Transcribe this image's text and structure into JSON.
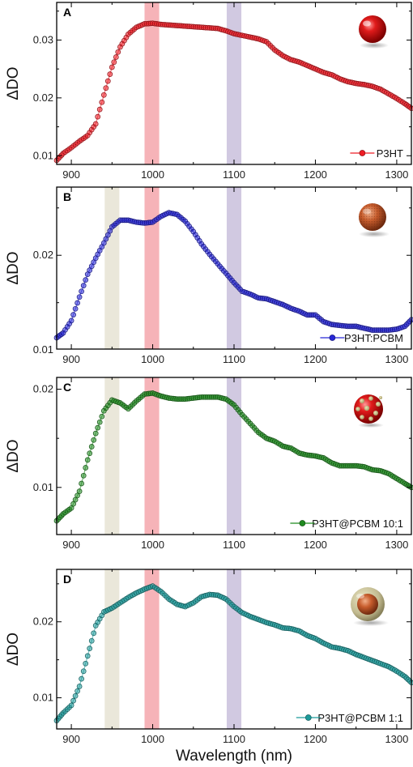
{
  "figure": {
    "xlabel": "Wavelength (nm)",
    "ylabel": "ΔDO"
  },
  "chart_data": [
    {
      "type": "scatter",
      "panel": "A",
      "xlim": [
        882,
        1318
      ],
      "ylim": [
        0.0085,
        0.0365
      ],
      "xticks": [
        900,
        1000,
        1100,
        1200,
        1300
      ],
      "yticks": [
        0.01,
        0.02,
        0.03
      ],
      "ytick_labels": [
        "0.01",
        "0.02",
        "0.03"
      ],
      "bands": [
        {
          "x0": 990,
          "x1": 1008,
          "color": "#f4a6ab"
        },
        {
          "x0": 1091,
          "x1": 1109,
          "color": "#c9bfdc"
        }
      ],
      "legend_position": "bottom-right",
      "series": [
        {
          "name": "P3HT",
          "color": "#ee1c24",
          "x": [
            882,
            890,
            900,
            910,
            920,
            930,
            940,
            950,
            960,
            970,
            980,
            990,
            1000,
            1010,
            1020,
            1030,
            1040,
            1050,
            1060,
            1070,
            1080,
            1090,
            1100,
            1110,
            1120,
            1130,
            1140,
            1150,
            1160,
            1170,
            1180,
            1190,
            1200,
            1210,
            1220,
            1230,
            1240,
            1250,
            1260,
            1270,
            1280,
            1290,
            1300,
            1310,
            1318
          ],
          "y": [
            0.0092,
            0.0104,
            0.0114,
            0.0125,
            0.0135,
            0.0155,
            0.0205,
            0.0253,
            0.0288,
            0.031,
            0.0322,
            0.0328,
            0.0329,
            0.0327,
            0.0326,
            0.0325,
            0.0324,
            0.0323,
            0.0322,
            0.0321,
            0.032,
            0.0316,
            0.0311,
            0.0308,
            0.0305,
            0.0302,
            0.0297,
            0.0283,
            0.0273,
            0.0266,
            0.0262,
            0.0256,
            0.025,
            0.0244,
            0.024,
            0.0233,
            0.0228,
            0.0225,
            0.0223,
            0.022,
            0.0215,
            0.0207,
            0.0199,
            0.019,
            0.0182
          ]
        }
      ]
    },
    {
      "type": "scatter",
      "panel": "B",
      "xlim": [
        882,
        1318
      ],
      "ylim": [
        0.0101,
        0.0272
      ],
      "xticks": [
        900,
        1000,
        1100,
        1200,
        1300
      ],
      "yticks": [
        0.01,
        0.02
      ],
      "ytick_labels": [
        "0.01",
        "0.02"
      ],
      "bands": [
        {
          "x0": 941,
          "x1": 959,
          "color": "#e6e3d4"
        },
        {
          "x0": 990,
          "x1": 1008,
          "color": "#f4a6ab"
        },
        {
          "x0": 1091,
          "x1": 1109,
          "color": "#c9bfdc"
        }
      ],
      "legend_position": "bottom-right",
      "series": [
        {
          "name": "P3HT:PCBM",
          "color": "#2727d6",
          "x": [
            882,
            890,
            900,
            910,
            920,
            930,
            940,
            950,
            960,
            970,
            980,
            990,
            1000,
            1010,
            1020,
            1030,
            1040,
            1050,
            1060,
            1070,
            1080,
            1090,
            1100,
            1110,
            1120,
            1130,
            1140,
            1150,
            1160,
            1170,
            1180,
            1190,
            1200,
            1210,
            1220,
            1230,
            1240,
            1250,
            1260,
            1270,
            1280,
            1290,
            1300,
            1310,
            1318
          ],
          "y": [
            0.0113,
            0.0118,
            0.0131,
            0.0156,
            0.018,
            0.0197,
            0.0213,
            0.023,
            0.0237,
            0.0237,
            0.0235,
            0.0234,
            0.0235,
            0.0241,
            0.0245,
            0.0243,
            0.0236,
            0.0225,
            0.0212,
            0.0201,
            0.0191,
            0.0181,
            0.0171,
            0.0162,
            0.0159,
            0.0155,
            0.0154,
            0.0151,
            0.0148,
            0.0144,
            0.0141,
            0.0137,
            0.0137,
            0.013,
            0.0127,
            0.0126,
            0.0125,
            0.0125,
            0.0123,
            0.0121,
            0.0121,
            0.0121,
            0.0122,
            0.0125,
            0.0132
          ]
        }
      ]
    },
    {
      "type": "scatter",
      "panel": "C",
      "xlim": [
        882,
        1318
      ],
      "ylim": [
        0.0052,
        0.0212
      ],
      "xticks": [
        900,
        1000,
        1100,
        1200,
        1300
      ],
      "yticks": [
        0.01,
        0.02
      ],
      "ytick_labels": [
        "0.01",
        "0.02"
      ],
      "bands": [
        {
          "x0": 941,
          "x1": 959,
          "color": "#e6e3d4"
        },
        {
          "x0": 990,
          "x1": 1008,
          "color": "#f4a6ab"
        },
        {
          "x0": 1091,
          "x1": 1109,
          "color": "#c9bfdc"
        }
      ],
      "legend_position": "bottom-right",
      "series": [
        {
          "name": "P3HT@PCBM 10:1",
          "color": "#1f8a1f",
          "x": [
            882,
            890,
            900,
            910,
            920,
            930,
            940,
            950,
            960,
            970,
            980,
            990,
            1000,
            1010,
            1020,
            1030,
            1040,
            1050,
            1060,
            1070,
            1080,
            1090,
            1100,
            1110,
            1120,
            1130,
            1140,
            1150,
            1160,
            1170,
            1180,
            1190,
            1200,
            1210,
            1220,
            1230,
            1240,
            1250,
            1260,
            1270,
            1280,
            1290,
            1300,
            1310,
            1318
          ],
          "y": [
            0.0066,
            0.0073,
            0.0079,
            0.0096,
            0.0128,
            0.0155,
            0.0178,
            0.0189,
            0.0186,
            0.018,
            0.0188,
            0.0195,
            0.0196,
            0.0193,
            0.0191,
            0.019,
            0.019,
            0.0191,
            0.0192,
            0.0192,
            0.0192,
            0.019,
            0.0184,
            0.0174,
            0.0165,
            0.0156,
            0.015,
            0.0147,
            0.0142,
            0.014,
            0.0135,
            0.0133,
            0.0132,
            0.013,
            0.0125,
            0.0122,
            0.0122,
            0.0122,
            0.0121,
            0.0118,
            0.0117,
            0.0114,
            0.0109,
            0.0104,
            0.01
          ]
        }
      ]
    },
    {
      "type": "scatter",
      "panel": "D",
      "xlim": [
        882,
        1318
      ],
      "ylim": [
        0.0059,
        0.0269
      ],
      "xticks": [
        900,
        1000,
        1100,
        1200,
        1300
      ],
      "yticks": [
        0.01,
        0.02
      ],
      "ytick_labels": [
        "0.01",
        "0.02"
      ],
      "bands": [
        {
          "x0": 941,
          "x1": 959,
          "color": "#e6e3d4"
        },
        {
          "x0": 990,
          "x1": 1008,
          "color": "#f4a6ab"
        },
        {
          "x0": 1091,
          "x1": 1109,
          "color": "#c9bfdc"
        }
      ],
      "legend_position": "bottom-right",
      "series": [
        {
          "name": "P3HT@PCBM 1:1",
          "color": "#1c9a9a",
          "x": [
            882,
            890,
            900,
            910,
            920,
            930,
            940,
            950,
            960,
            970,
            980,
            990,
            1000,
            1010,
            1020,
            1030,
            1040,
            1050,
            1060,
            1070,
            1080,
            1090,
            1100,
            1110,
            1120,
            1130,
            1140,
            1150,
            1160,
            1170,
            1180,
            1190,
            1200,
            1210,
            1220,
            1230,
            1240,
            1250,
            1260,
            1270,
            1280,
            1290,
            1300,
            1310,
            1318
          ],
          "y": [
            0.007,
            0.008,
            0.009,
            0.0115,
            0.0155,
            0.0195,
            0.0213,
            0.0218,
            0.0225,
            0.0232,
            0.0238,
            0.0243,
            0.0247,
            0.024,
            0.023,
            0.0223,
            0.022,
            0.0225,
            0.0233,
            0.0236,
            0.0235,
            0.023,
            0.022,
            0.0212,
            0.0207,
            0.0203,
            0.0199,
            0.0196,
            0.0192,
            0.0191,
            0.0188,
            0.0182,
            0.0178,
            0.0172,
            0.0167,
            0.0165,
            0.0162,
            0.0157,
            0.0153,
            0.0149,
            0.0145,
            0.0141,
            0.0135,
            0.0128,
            0.012
          ]
        }
      ]
    }
  ]
}
